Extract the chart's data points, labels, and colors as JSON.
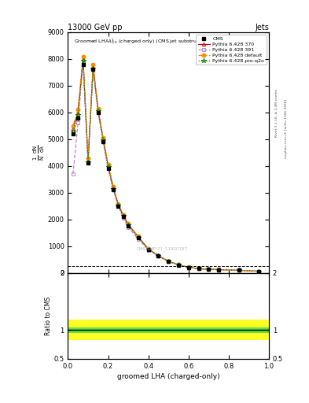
{
  "title": "13000 GeV pp",
  "title_right": "Jets",
  "plot_title": "Groomed LHA$\\lambda^{1}_{0.5}$ (charged only) (CMS jet substructure)",
  "xlabel": "groomed LHA (charged-only)",
  "ratio_ylabel": "Ratio to CMS",
  "watermark": "CMS-SMP-21_11920187",
  "right_label1": "Rivet 3.1.10; ≥ 3.4M events",
  "right_label2": "mcplots.cern.ch [arXiv:1306.3436]",
  "xdata": [
    0.025,
    0.05,
    0.075,
    0.1,
    0.125,
    0.15,
    0.175,
    0.2,
    0.225,
    0.25,
    0.275,
    0.3,
    0.35,
    0.4,
    0.45,
    0.5,
    0.55,
    0.6,
    0.65,
    0.7,
    0.75,
    0.85,
    0.95
  ],
  "cms_data": [
    5200,
    5800,
    7800,
    4100,
    7600,
    6000,
    4900,
    3900,
    3100,
    2500,
    2100,
    1750,
    1300,
    870,
    630,
    420,
    290,
    200,
    150,
    130,
    115,
    90,
    55
  ],
  "py370_data": [
    5400,
    6000,
    8000,
    4200,
    7700,
    6100,
    5000,
    4000,
    3200,
    2560,
    2150,
    1800,
    1340,
    890,
    640,
    430,
    300,
    205,
    155,
    133,
    118,
    92,
    57
  ],
  "py391_data": [
    3700,
    5600,
    7900,
    4100,
    7600,
    6000,
    4900,
    3900,
    3100,
    2500,
    2050,
    1700,
    1260,
    855,
    625,
    420,
    292,
    202,
    152,
    131,
    116,
    91,
    56
  ],
  "pydef_data": [
    5500,
    6100,
    8100,
    4300,
    7800,
    6150,
    5050,
    4050,
    3220,
    2580,
    2170,
    1830,
    1360,
    905,
    648,
    436,
    304,
    208,
    157,
    135,
    120,
    93,
    58
  ],
  "pyq2o_data": [
    5300,
    5900,
    7950,
    4150,
    7650,
    6050,
    4950,
    3950,
    3150,
    2530,
    2130,
    1780,
    1320,
    880,
    635,
    426,
    297,
    203,
    153,
    132,
    117,
    91,
    57
  ],
  "cms_color": "#000000",
  "py370_color": "#cc0000",
  "py391_color": "#bb88cc",
  "pydef_color": "#ff8800",
  "pyq2o_color": "#008800",
  "ylim_main": [
    0,
    9000
  ],
  "yticks_main": [
    0,
    1000,
    2000,
    3000,
    4000,
    5000,
    6000,
    7000,
    8000,
    9000
  ],
  "ylim_ratio": [
    0.5,
    2.0
  ],
  "yticks_ratio": [
    0.5,
    1.0,
    2.0
  ],
  "ratio_inner": 0.05,
  "ratio_outer": 0.18,
  "background_color": "#ffffff"
}
